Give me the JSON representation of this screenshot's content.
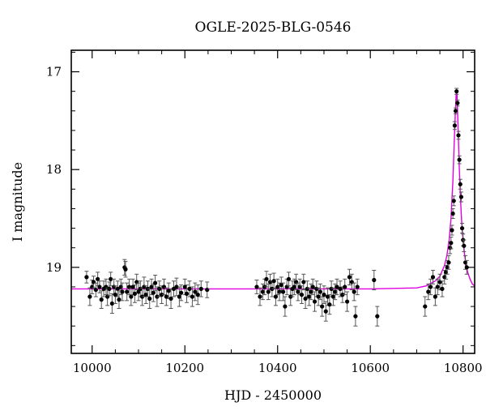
{
  "chart_data": {
    "type": "scatter",
    "title": "OGLE-2025-BLG-0546",
    "xlabel": "HJD - 2450000",
    "ylabel": "I magnitude",
    "xlim": [
      9955,
      10825
    ],
    "ylim": [
      19.88,
      16.78
    ],
    "y_inverted": true,
    "grid": false,
    "x_ticks": [
      10000,
      10200,
      10400,
      10600,
      10800
    ],
    "x_tick_labels": [
      "10000",
      "10200",
      "10400",
      "10600",
      "10800"
    ],
    "y_ticks": [
      17,
      18,
      19
    ],
    "y_tick_labels": [
      "17",
      "18",
      "19"
    ],
    "colors": {
      "points": "#000000",
      "model": "#e000e0"
    },
    "series": [
      {
        "kind": "points_with_errorbars",
        "points": [
          [
            9988,
            19.1,
            0.06
          ],
          [
            9995,
            19.3,
            0.09
          ],
          [
            10000,
            19.2,
            0.07
          ],
          [
            10003,
            19.15,
            0.06
          ],
          [
            10008,
            19.23,
            0.07
          ],
          [
            10012,
            19.12,
            0.07
          ],
          [
            10016,
            19.2,
            0.06
          ],
          [
            10020,
            19.33,
            0.09
          ],
          [
            10025,
            19.22,
            0.08
          ],
          [
            10030,
            19.2,
            0.08
          ],
          [
            10033,
            19.3,
            0.09
          ],
          [
            10037,
            19.22,
            0.07
          ],
          [
            10040,
            19.12,
            0.07
          ],
          [
            10043,
            19.37,
            0.1
          ],
          [
            10047,
            19.2,
            0.08
          ],
          [
            10050,
            19.28,
            0.09
          ],
          [
            10055,
            19.22,
            0.08
          ],
          [
            10058,
            19.33,
            0.09
          ],
          [
            10062,
            19.2,
            0.08
          ],
          [
            10065,
            19.25,
            0.09
          ],
          [
            10070,
            19.0,
            0.08
          ],
          [
            10072,
            19.02,
            0.08
          ],
          [
            10075,
            19.25,
            0.09
          ],
          [
            10080,
            19.2,
            0.08
          ],
          [
            10084,
            19.3,
            0.09
          ],
          [
            10088,
            19.2,
            0.08
          ],
          [
            10092,
            19.27,
            0.09
          ],
          [
            10096,
            19.15,
            0.08
          ],
          [
            10100,
            19.25,
            0.09
          ],
          [
            10104,
            19.22,
            0.08
          ],
          [
            10108,
            19.3,
            0.09
          ],
          [
            10112,
            19.2,
            0.1
          ],
          [
            10116,
            19.28,
            0.09
          ],
          [
            10120,
            19.22,
            0.08
          ],
          [
            10124,
            19.32,
            0.1
          ],
          [
            10128,
            19.2,
            0.08
          ],
          [
            10132,
            19.26,
            0.09
          ],
          [
            10136,
            19.16,
            0.08
          ],
          [
            10140,
            19.3,
            0.1
          ],
          [
            10145,
            19.22,
            0.08
          ],
          [
            10150,
            19.28,
            0.09
          ],
          [
            10155,
            19.2,
            0.08
          ],
          [
            10160,
            19.3,
            0.09
          ],
          [
            10165,
            19.24,
            0.08
          ],
          [
            10170,
            19.32,
            0.1
          ],
          [
            10176,
            19.22,
            0.08
          ],
          [
            10182,
            19.2,
            0.09
          ],
          [
            10188,
            19.3,
            0.1
          ],
          [
            10192,
            19.26,
            0.08
          ],
          [
            10200,
            19.2,
            0.08
          ],
          [
            10204,
            19.27,
            0.09
          ],
          [
            10210,
            19.22,
            0.08
          ],
          [
            10216,
            19.3,
            0.1
          ],
          [
            10222,
            19.25,
            0.09
          ],
          [
            10228,
            19.28,
            0.1
          ],
          [
            10235,
            19.22,
            0.08
          ],
          [
            10248,
            19.23,
            0.08
          ],
          [
            10355,
            19.2,
            0.07
          ],
          [
            10362,
            19.3,
            0.09
          ],
          [
            10368,
            19.25,
            0.08
          ],
          [
            10372,
            19.2,
            0.08
          ],
          [
            10376,
            19.12,
            0.08
          ],
          [
            10380,
            19.25,
            0.08
          ],
          [
            10384,
            19.15,
            0.08
          ],
          [
            10388,
            19.22,
            0.08
          ],
          [
            10392,
            19.14,
            0.08
          ],
          [
            10396,
            19.3,
            0.09
          ],
          [
            10400,
            19.2,
            0.08
          ],
          [
            10404,
            19.25,
            0.09
          ],
          [
            10408,
            19.18,
            0.08
          ],
          [
            10412,
            19.25,
            0.09
          ],
          [
            10416,
            19.4,
            0.1
          ],
          [
            10420,
            19.2,
            0.08
          ],
          [
            10424,
            19.12,
            0.07
          ],
          [
            10428,
            19.3,
            0.09
          ],
          [
            10432,
            19.22,
            0.08
          ],
          [
            10436,
            19.2,
            0.08
          ],
          [
            10440,
            19.15,
            0.08
          ],
          [
            10444,
            19.25,
            0.09
          ],
          [
            10448,
            19.2,
            0.08
          ],
          [
            10452,
            19.28,
            0.09
          ],
          [
            10456,
            19.15,
            0.08
          ],
          [
            10460,
            19.32,
            0.1
          ],
          [
            10464,
            19.22,
            0.08
          ],
          [
            10468,
            19.3,
            0.09
          ],
          [
            10472,
            19.25,
            0.08
          ],
          [
            10476,
            19.2,
            0.08
          ],
          [
            10480,
            19.35,
            0.1
          ],
          [
            10484,
            19.22,
            0.08
          ],
          [
            10488,
            19.3,
            0.09
          ],
          [
            10492,
            19.25,
            0.08
          ],
          [
            10496,
            19.4,
            0.1
          ],
          [
            10500,
            19.28,
            0.09
          ],
          [
            10504,
            19.45,
            0.1
          ],
          [
            10508,
            19.3,
            0.09
          ],
          [
            10512,
            19.38,
            0.1
          ],
          [
            10516,
            19.22,
            0.08
          ],
          [
            10520,
            19.3,
            0.09
          ],
          [
            10524,
            19.25,
            0.08
          ],
          [
            10528,
            19.2,
            0.08
          ],
          [
            10535,
            19.22,
            0.08
          ],
          [
            10540,
            19.28,
            0.08
          ],
          [
            10545,
            19.2,
            0.08
          ],
          [
            10550,
            19.35,
            0.1
          ],
          [
            10555,
            19.1,
            0.08
          ],
          [
            10560,
            19.15,
            0.08
          ],
          [
            10565,
            19.25,
            0.09
          ],
          [
            10568,
            19.5,
            0.1
          ],
          [
            10572,
            19.2,
            0.08
          ],
          [
            10608,
            19.13,
            0.1
          ],
          [
            10615,
            19.5,
            0.1
          ],
          [
            10718,
            19.4,
            0.1
          ],
          [
            10725,
            19.25,
            0.08
          ],
          [
            10730,
            19.2,
            0.08
          ],
          [
            10735,
            19.1,
            0.07
          ],
          [
            10740,
            19.3,
            0.09
          ],
          [
            10745,
            19.2,
            0.08
          ],
          [
            10750,
            19.15,
            0.08
          ],
          [
            10755,
            19.22,
            0.08
          ],
          [
            10760,
            19.1,
            0.07
          ],
          [
            10763,
            19.05,
            0.07
          ],
          [
            10766,
            19.0,
            0.07
          ],
          [
            10769,
            18.95,
            0.07
          ],
          [
            10772,
            18.8,
            0.06
          ],
          [
            10774,
            18.75,
            0.06
          ],
          [
            10776,
            18.62,
            0.05
          ],
          [
            10778,
            18.45,
            0.05
          ],
          [
            10780,
            18.32,
            0.05
          ],
          [
            10782,
            17.55,
            0.04
          ],
          [
            10784,
            17.4,
            0.03
          ],
          [
            10786,
            17.2,
            0.03
          ],
          [
            10788,
            17.32,
            0.03
          ],
          [
            10790,
            17.65,
            0.04
          ],
          [
            10792,
            17.9,
            0.04
          ],
          [
            10794,
            18.15,
            0.05
          ],
          [
            10796,
            18.28,
            0.05
          ],
          [
            10798,
            18.6,
            0.05
          ],
          [
            10800,
            18.72,
            0.06
          ],
          [
            10802,
            18.78,
            0.06
          ],
          [
            10805,
            18.95,
            0.07
          ],
          [
            10808,
            19.0,
            0.07
          ]
        ]
      },
      {
        "kind": "model_curve",
        "x": [
          9955,
          10300,
          10600,
          10700,
          10720,
          10740,
          10750,
          10760,
          10765,
          10770,
          10774,
          10778,
          10781,
          10783,
          10785,
          10786,
          10787,
          10788,
          10790,
          10792,
          10794,
          10796,
          10798,
          10800,
          10803,
          10806,
          10810,
          10815,
          10820,
          10825
        ],
        "y": [
          19.22,
          19.22,
          19.22,
          19.21,
          19.19,
          19.14,
          19.09,
          18.98,
          18.88,
          18.72,
          18.5,
          18.12,
          17.72,
          17.45,
          17.24,
          17.2,
          17.24,
          17.38,
          17.7,
          18.0,
          18.25,
          18.45,
          18.6,
          18.72,
          18.86,
          18.96,
          19.05,
          19.12,
          19.17,
          19.19
        ]
      }
    ]
  }
}
